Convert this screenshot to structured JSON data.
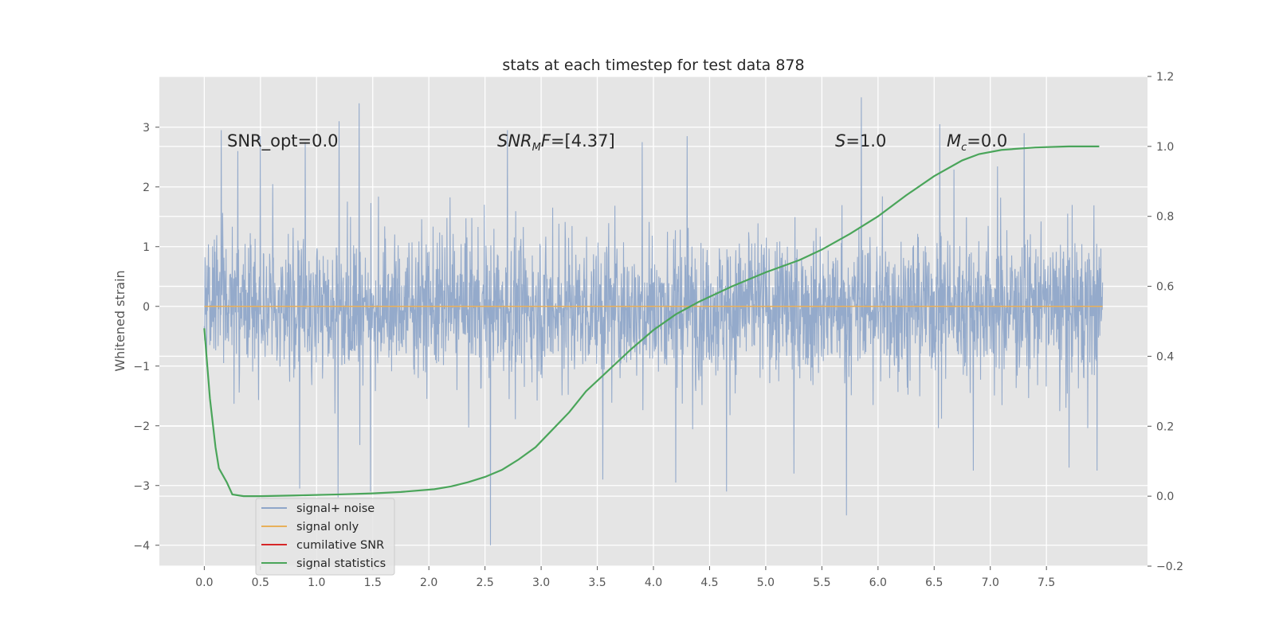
{
  "chart_data": {
    "type": "line",
    "title": "stats at each timestep for test data 878",
    "ylabel": "Whitened strain",
    "y2label": "",
    "xlim": [
      -0.4,
      8.4
    ],
    "ylim": [
      -4.35,
      3.85
    ],
    "y2lim": [
      -0.2,
      1.2
    ],
    "grid": true,
    "legend_placement": "lower-left",
    "x_ticks": [
      "0.0",
      "0.5",
      "1.0",
      "1.5",
      "2.0",
      "2.5",
      "3.0",
      "3.5",
      "4.0",
      "4.5",
      "5.0",
      "5.5",
      "6.0",
      "6.5",
      "7.0",
      "7.5"
    ],
    "y_ticks": [
      "−4",
      "−3",
      "−2",
      "−1",
      "0",
      "1",
      "2",
      "3"
    ],
    "y2_ticks": [
      "−0.2",
      "0.0",
      "0.2",
      "0.4",
      "0.6",
      "0.8",
      "1.0",
      "1.2"
    ],
    "annotations": [
      {
        "text": "SNR_opt=0.0",
        "x": 0.2
      },
      {
        "text": "SNR_M F=[4.37]",
        "x": 2.6
      },
      {
        "text": "S=1.0",
        "x": 5.6
      },
      {
        "text": "M_c=0.0",
        "x": 6.6
      }
    ],
    "series": [
      {
        "name": "signal+ noise",
        "axis": "left",
        "color": "#8fa6c9",
        "description_range": [
          0.0,
          8.0
        ],
        "x_start": 0.0,
        "x_end": 8.0,
        "spikes": [
          {
            "x": 1.38,
            "y": 3.4
          },
          {
            "x": 5.85,
            "y": 3.5
          },
          {
            "x": 1.2,
            "y": 3.1
          },
          {
            "x": 2.55,
            "y": -4.0
          },
          {
            "x": 5.72,
            "y": -3.5
          },
          {
            "x": 1.19,
            "y": -3.2
          },
          {
            "x": 0.15,
            "y": 2.95
          },
          {
            "x": 4.3,
            "y": 2.85
          },
          {
            "x": 6.55,
            "y": 3.05
          },
          {
            "x": 7.3,
            "y": 2.9
          },
          {
            "x": 0.3,
            "y": 2.6
          },
          {
            "x": 0.5,
            "y": 2.85
          },
          {
            "x": 0.9,
            "y": 2.75
          },
          {
            "x": 2.7,
            "y": 2.95
          },
          {
            "x": 3.9,
            "y": 2.75
          },
          {
            "x": 4.2,
            "y": -2.95
          },
          {
            "x": 4.65,
            "y": -3.1
          },
          {
            "x": 5.25,
            "y": -2.8
          },
          {
            "x": 6.85,
            "y": -2.75
          },
          {
            "x": 7.7,
            "y": -2.7
          },
          {
            "x": 7.95,
            "y": -2.75
          },
          {
            "x": 0.85,
            "y": -3.05
          },
          {
            "x": 1.48,
            "y": -3.1
          },
          {
            "x": 3.55,
            "y": -2.9
          }
        ]
      },
      {
        "name": "signal only",
        "axis": "left",
        "color": "#e8b05a",
        "x": [
          0.0,
          8.0
        ],
        "values": [
          0.0,
          0.0
        ]
      },
      {
        "name": "cumilative SNR",
        "axis": "left",
        "color": "#d62728",
        "x": [],
        "values": []
      },
      {
        "name": "signal statistics",
        "axis": "right",
        "color": "#4aa55a",
        "x": [
          0.0,
          0.05,
          0.1,
          0.13,
          0.2,
          0.25,
          0.35,
          0.5,
          0.8,
          1.2,
          1.5,
          1.75,
          2.05,
          2.2,
          2.35,
          2.5,
          2.65,
          2.8,
          2.95,
          3.1,
          3.25,
          3.4,
          3.6,
          3.8,
          4.0,
          4.2,
          4.4,
          4.7,
          5.0,
          5.3,
          5.5,
          5.75,
          6.0,
          6.25,
          6.5,
          6.75,
          6.9,
          7.1,
          7.4,
          7.7,
          7.97
        ],
        "values": [
          0.48,
          0.28,
          0.14,
          0.08,
          0.04,
          0.005,
          0.0,
          0.0,
          0.002,
          0.005,
          0.008,
          0.012,
          0.02,
          0.028,
          0.04,
          0.055,
          0.075,
          0.105,
          0.14,
          0.19,
          0.24,
          0.3,
          0.36,
          0.42,
          0.475,
          0.52,
          0.555,
          0.6,
          0.64,
          0.675,
          0.705,
          0.75,
          0.8,
          0.86,
          0.915,
          0.96,
          0.978,
          0.99,
          0.997,
          1.0,
          1.0
        ]
      }
    ]
  }
}
